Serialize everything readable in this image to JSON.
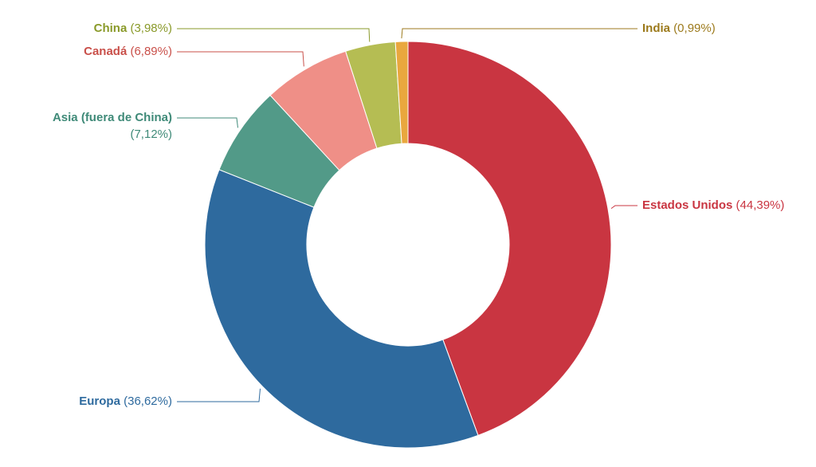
{
  "chart_data": {
    "type": "donut",
    "categories": [
      "Estados Unidos",
      "Europa",
      "Asia (fuera de China)",
      "Canadá",
      "China",
      "India"
    ],
    "values": [
      44.39,
      36.62,
      7.12,
      6.89,
      3.98,
      0.99
    ],
    "value_labels": [
      "(44,39%)",
      "(36,62%)",
      "(7,12%)",
      "(6,89%)",
      "(3,98%)",
      "(0,99%)"
    ],
    "colors": [
      "#c93541",
      "#2e6a9e",
      "#529a88",
      "#ef8f87",
      "#b5bd53",
      "#e9a73e"
    ],
    "label_colors": [
      "#c93541",
      "#2e6a9e",
      "#3f8a78",
      "#c9504a",
      "#8a9a2a",
      "#9c7a1c"
    ]
  }
}
